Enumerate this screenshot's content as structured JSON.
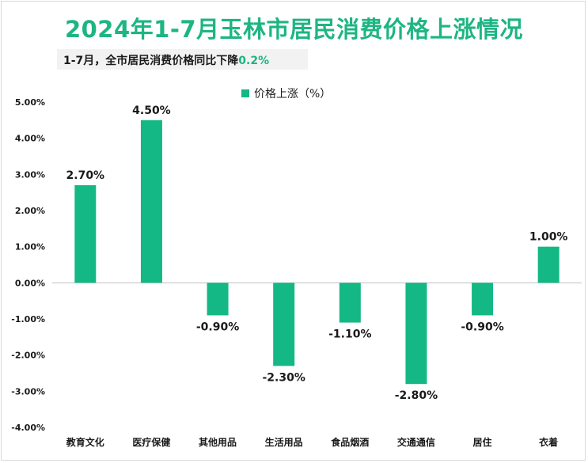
{
  "header": {
    "title": "2024年1-7月玉林市居民消费价格上涨情况",
    "subtitle_prefix": "1-7月，全市居民消费价格同比下降",
    "subtitle_value": "0.2%"
  },
  "colors": {
    "bar": "#14b884",
    "title": "#1db583",
    "axis": "#bfbfbf"
  },
  "chart_data": {
    "type": "bar",
    "categories": [
      "教育文化",
      "医疗保健",
      "其他用品",
      "生活用品",
      "食品烟酒",
      "交通通信",
      "居住",
      "衣着"
    ],
    "series": [
      {
        "name": "价格上涨（%）",
        "values": [
          2.7,
          4.5,
          -0.9,
          -2.3,
          -1.1,
          -2.8,
          -0.9,
          1.0
        ]
      }
    ],
    "data_labels": [
      "2.70%",
      "4.50%",
      "-0.90%",
      "-2.30%",
      "-1.10%",
      "-2.80%",
      "-0.90%",
      "1.00%"
    ],
    "ylim": [
      -4,
      5
    ],
    "yticks": [
      5,
      4,
      3,
      2,
      1,
      0,
      -1,
      -2,
      -3,
      -4
    ],
    "ytick_labels": [
      "5.00%",
      "4.00%",
      "3.00%",
      "2.00%",
      "1.00%",
      "0.00%",
      "-1.00%",
      "-2.00%",
      "-3.00%",
      "-4.00%"
    ],
    "legend_position": "top-center",
    "grid": false
  }
}
